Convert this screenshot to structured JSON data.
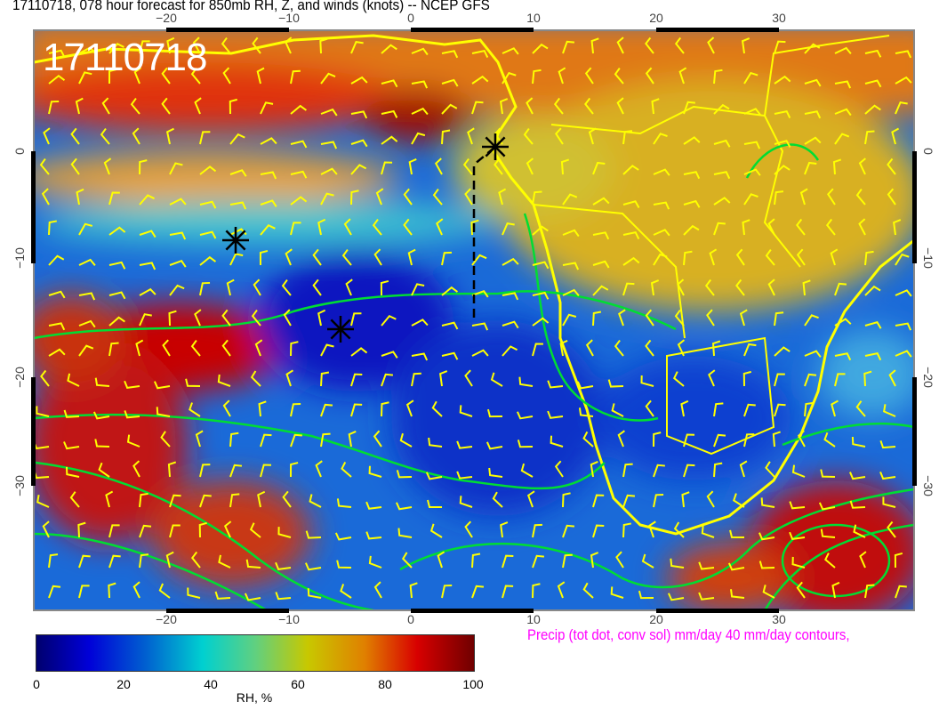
{
  "title": "17110718, 078 hour forecast for 850mb RH, Z, and winds (knots)  -- NCEP GFS",
  "date_stamp": "17110718",
  "map": {
    "lon_ticks": [
      "−20",
      "−10",
      "0",
      "10",
      "20",
      "30"
    ],
    "lat_ticks": [
      "0",
      "−10",
      "−20",
      "−30"
    ],
    "land_color": "#ffff00",
    "contour_color": "#00dd33",
    "wind_barb_color": "#ffff00",
    "markers": [
      "asterisk",
      "asterisk",
      "asterisk"
    ]
  },
  "precip_note": "Precip (tot dot, conv sol) mm/day 40 mm/day contours,",
  "colorbar": {
    "ticks": [
      "0",
      "20",
      "40",
      "60",
      "80",
      "100"
    ],
    "label": "RH, %",
    "colors": [
      "#00006e",
      "#0000d8",
      "#00d0d0",
      "#c8c800",
      "#d80000",
      "#700000"
    ]
  }
}
